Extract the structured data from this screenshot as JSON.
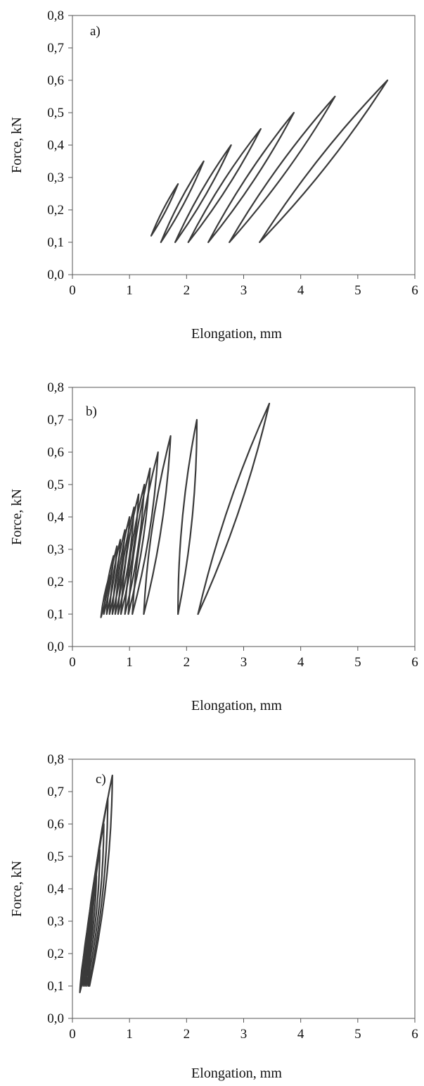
{
  "chart_data": [
    {
      "type": "line",
      "panel_label": "a)",
      "xlabel": "Elongation, mm",
      "ylabel": "Force, kN",
      "xlim": [
        0,
        6
      ],
      "ylim": [
        0,
        0.8
      ],
      "x_ticks": [
        "0",
        "1",
        "2",
        "3",
        "4",
        "5",
        "6"
      ],
      "y_ticks": [
        "0,0",
        "0,1",
        "0,2",
        "0,3",
        "0,4",
        "0,5",
        "0,6",
        "0,7",
        "0,8"
      ],
      "grid": false,
      "series": [
        {
          "loops": [
            {
              "x_min": 1.38,
              "y_min": 0.12,
              "x_max": 1.85,
              "y_max": 0.28
            },
            {
              "x_min": 1.55,
              "y_min": 0.1,
              "x_max": 2.3,
              "y_max": 0.35
            },
            {
              "x_min": 1.8,
              "y_min": 0.1,
              "x_max": 2.78,
              "y_max": 0.4
            },
            {
              "x_min": 2.03,
              "y_min": 0.1,
              "x_max": 3.3,
              "y_max": 0.45
            },
            {
              "x_min": 2.38,
              "y_min": 0.1,
              "x_max": 3.88,
              "y_max": 0.5
            },
            {
              "x_min": 2.75,
              "y_min": 0.1,
              "x_max": 4.6,
              "y_max": 0.55
            },
            {
              "x_min": 3.28,
              "y_min": 0.1,
              "x_max": 5.52,
              "y_max": 0.6
            }
          ]
        }
      ]
    },
    {
      "type": "line",
      "panel_label": "b)",
      "xlabel": "Elongation, mm",
      "ylabel": "Force, kN",
      "xlim": [
        0,
        6
      ],
      "ylim": [
        0,
        0.8
      ],
      "x_ticks": [
        "0",
        "1",
        "2",
        "3",
        "4",
        "5",
        "6"
      ],
      "y_ticks": [
        "0,0",
        "0,1",
        "0,2",
        "0,3",
        "0,4",
        "0,5",
        "0,6",
        "0,7",
        "0,8"
      ],
      "grid": false,
      "series": [
        {
          "loops": [
            {
              "x_min": 0.5,
              "y_min": 0.09,
              "x_max": 0.65,
              "y_max": 0.22
            },
            {
              "x_min": 0.55,
              "y_min": 0.1,
              "x_max": 0.72,
              "y_max": 0.28
            },
            {
              "x_min": 0.6,
              "y_min": 0.1,
              "x_max": 0.78,
              "y_max": 0.31
            },
            {
              "x_min": 0.65,
              "y_min": 0.1,
              "x_max": 0.84,
              "y_max": 0.33
            },
            {
              "x_min": 0.7,
              "y_min": 0.1,
              "x_max": 0.92,
              "y_max": 0.36
            },
            {
              "x_min": 0.75,
              "y_min": 0.1,
              "x_max": 1.0,
              "y_max": 0.4
            },
            {
              "x_min": 0.8,
              "y_min": 0.1,
              "x_max": 1.08,
              "y_max": 0.43
            },
            {
              "x_min": 0.85,
              "y_min": 0.1,
              "x_max": 1.16,
              "y_max": 0.47
            },
            {
              "x_min": 0.92,
              "y_min": 0.1,
              "x_max": 1.26,
              "y_max": 0.5
            },
            {
              "x_min": 0.98,
              "y_min": 0.1,
              "x_max": 1.36,
              "y_max": 0.55
            },
            {
              "x_min": 1.05,
              "y_min": 0.1,
              "x_max": 1.5,
              "y_max": 0.6
            },
            {
              "x_min": 1.25,
              "y_min": 0.1,
              "x_max": 1.72,
              "y_max": 0.65
            },
            {
              "x_min": 1.85,
              "y_min": 0.1,
              "x_max": 2.18,
              "y_max": 0.7
            },
            {
              "x_min": 2.2,
              "y_min": 0.1,
              "x_max": 3.45,
              "y_max": 0.75
            }
          ]
        }
      ]
    },
    {
      "type": "line",
      "panel_label": "c)",
      "xlabel": "Elongation, mm",
      "ylabel": "Force, kN",
      "xlim": [
        0,
        6
      ],
      "ylim": [
        0,
        0.8
      ],
      "x_ticks": [
        "0",
        "1",
        "2",
        "3",
        "4",
        "5",
        "6"
      ],
      "y_ticks": [
        "0,0",
        "0,1",
        "0,2",
        "0,3",
        "0,4",
        "0,5",
        "0,6",
        "0,7",
        "0,8"
      ],
      "grid": false,
      "series": [
        {
          "loops": [
            {
              "x_min": 0.13,
              "y_min": 0.08,
              "x_max": 0.3,
              "y_max": 0.28
            },
            {
              "x_min": 0.16,
              "y_min": 0.1,
              "x_max": 0.36,
              "y_max": 0.36
            },
            {
              "x_min": 0.19,
              "y_min": 0.1,
              "x_max": 0.42,
              "y_max": 0.44
            },
            {
              "x_min": 0.22,
              "y_min": 0.1,
              "x_max": 0.48,
              "y_max": 0.52
            },
            {
              "x_min": 0.25,
              "y_min": 0.1,
              "x_max": 0.55,
              "y_max": 0.6
            },
            {
              "x_min": 0.28,
              "y_min": 0.1,
              "x_max": 0.62,
              "y_max": 0.68
            },
            {
              "x_min": 0.3,
              "y_min": 0.1,
              "x_max": 0.7,
              "y_max": 0.75
            }
          ]
        }
      ]
    }
  ],
  "colors": {
    "curve": "#3a3a3a",
    "axis": "#555555",
    "text": "#111111"
  }
}
